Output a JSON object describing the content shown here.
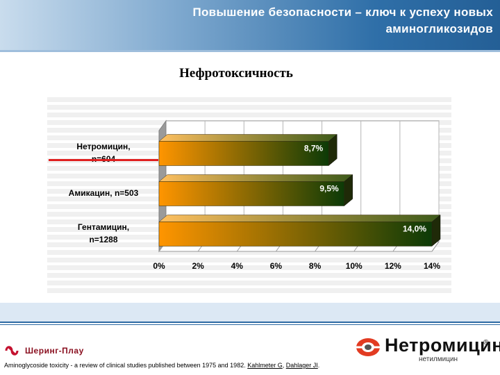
{
  "header": {
    "title": "Повышение безопасности – ключ к успеху новых аминогликозидов"
  },
  "chart_data": {
    "type": "bar",
    "orientation": "horizontal",
    "title": "Нефротоксичность",
    "categories": [
      "Нетромицин,\nn=604",
      "Амикацин, n=503",
      "Гентамицин,\nn=1288"
    ],
    "values": [
      8.7,
      9.5,
      14.0
    ],
    "value_labels": [
      "8,7%",
      "9,5%",
      "14,0%"
    ],
    "x_ticks": [
      "0%",
      "2%",
      "4%",
      "6%",
      "8%",
      "10%",
      "12%",
      "14%"
    ],
    "xlim": [
      0,
      14
    ],
    "grid": true,
    "legend": "none",
    "colors": {
      "bar_start": "#ff9500",
      "bar_end": "#0c3a07",
      "highlight": "#e02020"
    }
  },
  "branding": {
    "left_logo": "Шеринг-Плау",
    "right_logo": "Нетромицин",
    "right_logo_reg": "®",
    "right_logo_sub": "нетилмицин"
  },
  "citation": {
    "text": "Aminoglycoside toxicity - a review of clinical studies published between 1975 and 1982. ",
    "author1": "Kahlmeter G",
    "sep": ", ",
    "author2": "Dahlager JI",
    "end": "."
  }
}
